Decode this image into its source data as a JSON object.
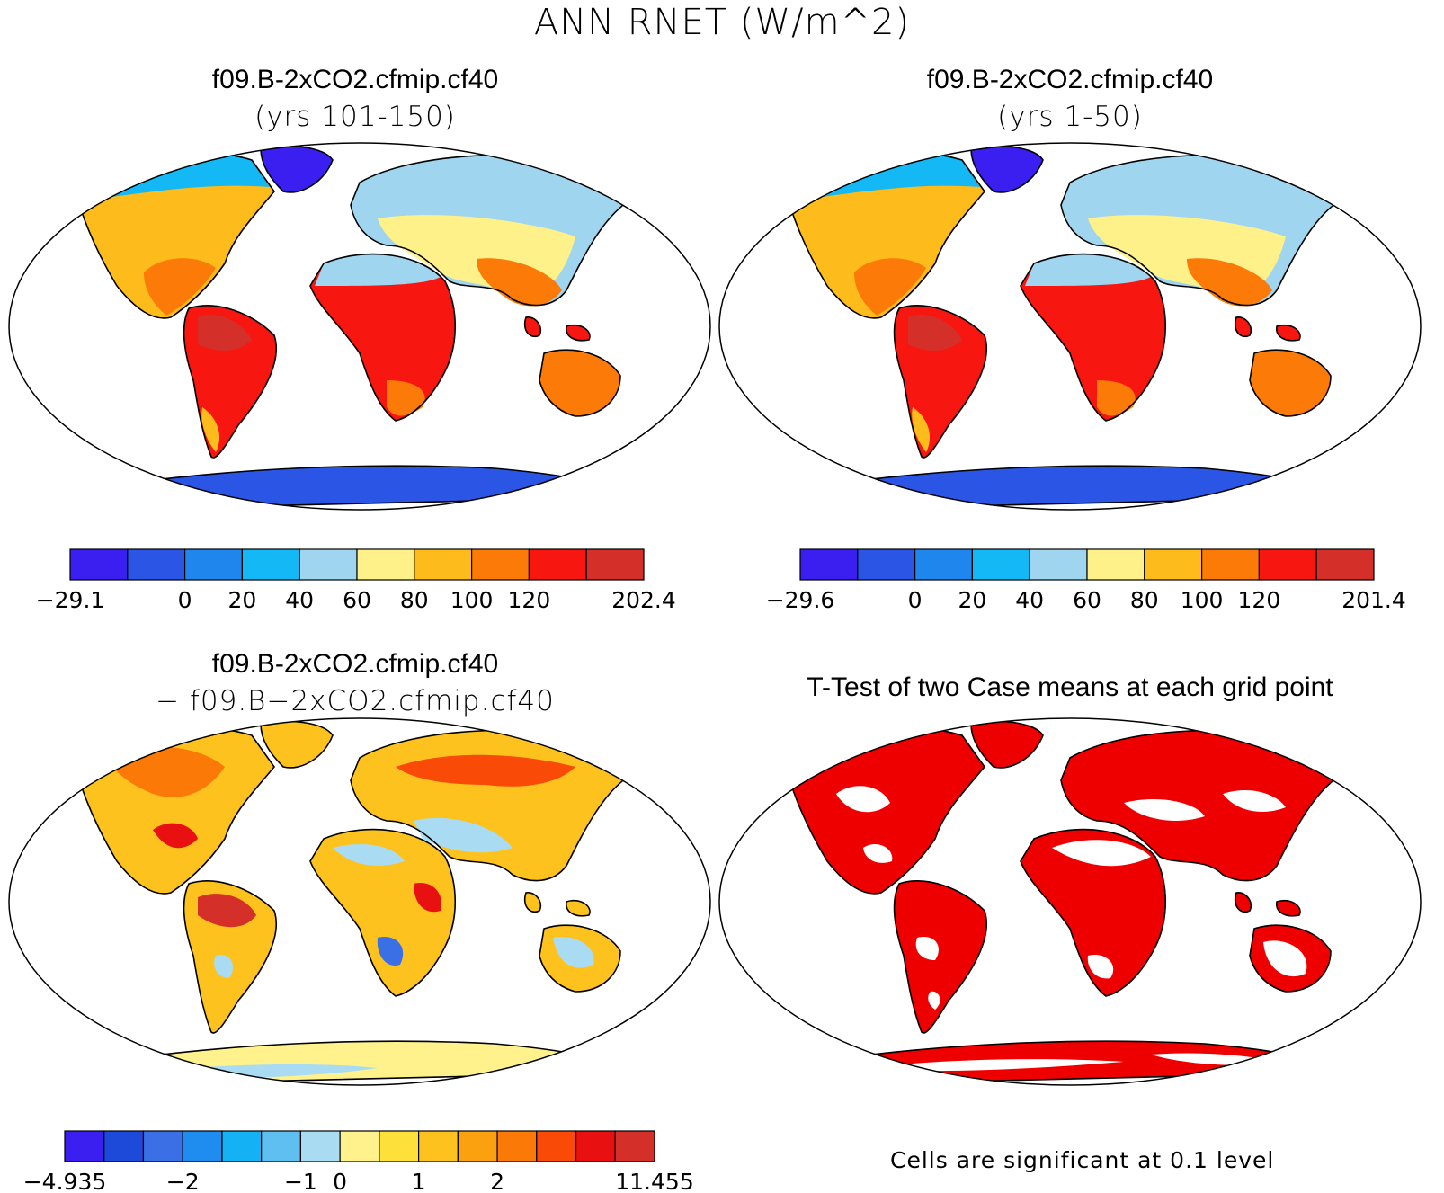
{
  "title": "ANN RNET (W/m^2)",
  "panels": [
    {
      "id": "p1",
      "title": "f09.B-2xCO2.cfmip.cf40",
      "subtitle": "(yrs 101-150)"
    },
    {
      "id": "p2",
      "title": "f09.B-2xCO2.cfmip.cf40",
      "subtitle": "(yrs 1-50)"
    },
    {
      "id": "p3",
      "title": "f09.B-2xCO2.cfmip.cf40",
      "subtitle": "−  f09.B−2xCO2.cfmip.cf40"
    },
    {
      "id": "p4",
      "title": "T-Test of two Case means at each grid point",
      "subtitle": ""
    }
  ],
  "colorbars": [
    {
      "id": "cb1",
      "colors": [
        "#3b1ef0",
        "#2b55e4",
        "#1f86ee",
        "#13b8f5",
        "#9fd5ef",
        "#fff18a",
        "#fdbb1c",
        "#fc7a07",
        "#f71610",
        "#d52f2a"
      ],
      "labels": [
        "−29.1",
        "0",
        "20",
        "40",
        "60",
        "80",
        "100",
        "120",
        "202.4"
      ]
    },
    {
      "id": "cb2",
      "colors": [
        "#3b1ef0",
        "#2b55e4",
        "#1f86ee",
        "#13b8f5",
        "#9fd5ef",
        "#fff18a",
        "#fdbb1c",
        "#fc7a07",
        "#f71610",
        "#d52f2a"
      ],
      "labels": [
        "−29.6",
        "0",
        "20",
        "40",
        "60",
        "80",
        "100",
        "120",
        "201.4"
      ]
    },
    {
      "id": "cb3",
      "colors": [
        "#3b1ef0",
        "#1d4ad9",
        "#3a6fe6",
        "#1f8cf0",
        "#14b2f5",
        "#5fbff0",
        "#a9dbf2",
        "#fff28c",
        "#fde03a",
        "#fdc21d",
        "#fba10f",
        "#fb7a07",
        "#fa4a08",
        "#e81010",
        "#d52f2a"
      ],
      "labels": [
        "−4.935",
        "−2",
        "−1",
        "0",
        "1",
        "2",
        "11.455"
      ]
    }
  ],
  "significance_note": "Cells are significant at 0.1 level",
  "colors": {
    "significant": "#ef0000",
    "land_outline": "#000000"
  }
}
